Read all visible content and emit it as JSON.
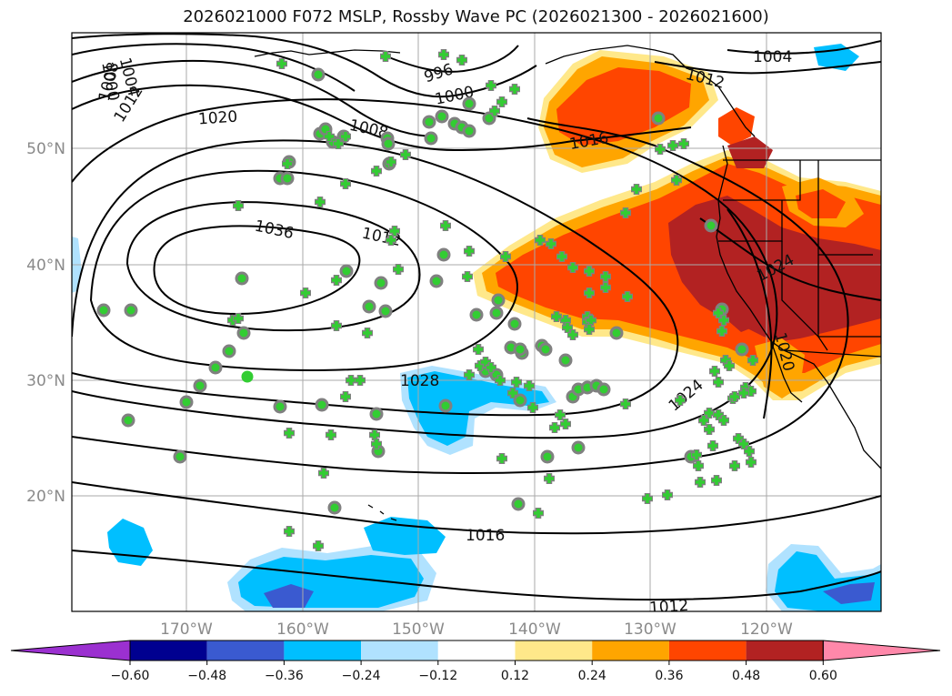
{
  "title": "2026021000 F072 MSLP, Rossby Wave PC (2026021300 - 2026021600)",
  "longitude_labels": [
    "170°W",
    "160°W",
    "150°W",
    "140°W",
    "130°W",
    "120°W"
  ],
  "latitude_labels": [
    "50°N",
    "40°N",
    "30°N",
    "20°N"
  ],
  "colorbar": {
    "tick_labels": [
      "−0.60",
      "−0.48",
      "−0.36",
      "−0.24",
      "−0.12",
      "0.12",
      "0.24",
      "0.36",
      "0.48",
      "0.60"
    ],
    "colors": [
      "#9b30d0",
      "#000090",
      "#3a5ad0",
      "#00bfff",
      "#b0e2ff",
      "#ffffff",
      "#ffe88a",
      "#ffa500",
      "#ff4500",
      "#b22222",
      "#ff88aa"
    ]
  },
  "isobar_labels": [
    "996",
    "1000",
    "1004",
    "1008",
    "1012",
    "1016",
    "1020",
    "1024",
    "1028",
    "1036",
    "1000",
    "1004",
    "1008",
    "1012",
    "1016",
    "1020",
    "1024",
    "1012",
    "1016",
    "1012"
  ],
  "marker_colors": {
    "filled_circle": "#32cd32",
    "circle_outline": "#808080",
    "plus": "#32cd32"
  }
}
